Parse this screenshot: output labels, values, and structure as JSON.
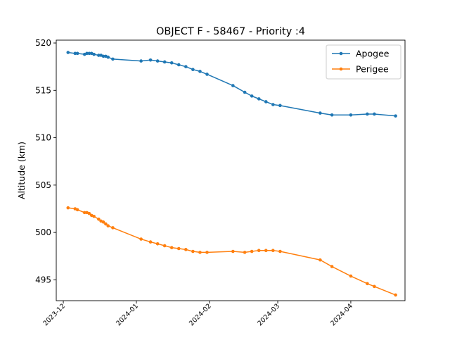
{
  "chart_data": {
    "type": "line",
    "title": "OBJECT F - 58467 - Priority :4",
    "xlabel": "",
    "ylabel": "Altitude (km)",
    "x_axis_type": "date",
    "xlim": [
      "2023-11-28",
      "2024-04-24"
    ],
    "ylim": [
      492.8,
      520.3
    ],
    "yticks": [
      495,
      500,
      505,
      510,
      515,
      520
    ],
    "xticks": [
      "2023-12-01",
      "2024-01-01",
      "2024-02-01",
      "2024-03-01",
      "2024-04-01"
    ],
    "xtick_labels": [
      "2023-12",
      "2024-01",
      "2024-02",
      "2024-03",
      "2024-04"
    ],
    "legend_position": "upper right",
    "grid": false,
    "series": [
      {
        "name": "Apogee",
        "color": "#1f77b4",
        "marker": "circle",
        "points": [
          [
            "2023-12-03",
            519.0
          ],
          [
            "2023-12-06",
            518.9
          ],
          [
            "2023-12-07",
            518.9
          ],
          [
            "2023-12-10",
            518.8
          ],
          [
            "2023-12-11",
            518.9
          ],
          [
            "2023-12-12",
            518.9
          ],
          [
            "2023-12-13",
            518.9
          ],
          [
            "2023-12-14",
            518.8
          ],
          [
            "2023-12-16",
            518.7
          ],
          [
            "2023-12-17",
            518.7
          ],
          [
            "2023-12-18",
            518.6
          ],
          [
            "2023-12-19",
            518.6
          ],
          [
            "2023-12-20",
            518.5
          ],
          [
            "2023-12-22",
            518.3
          ],
          [
            "2024-01-03",
            518.1
          ],
          [
            "2024-01-07",
            518.2
          ],
          [
            "2024-01-10",
            518.1
          ],
          [
            "2024-01-13",
            518.0
          ],
          [
            "2024-01-16",
            517.9
          ],
          [
            "2024-01-19",
            517.7
          ],
          [
            "2024-01-22",
            517.5
          ],
          [
            "2024-01-25",
            517.2
          ],
          [
            "2024-01-28",
            517.0
          ],
          [
            "2024-01-31",
            516.7
          ],
          [
            "2024-02-11",
            515.5
          ],
          [
            "2024-02-16",
            514.8
          ],
          [
            "2024-02-19",
            514.4
          ],
          [
            "2024-02-22",
            514.1
          ],
          [
            "2024-02-25",
            513.8
          ],
          [
            "2024-02-28",
            513.5
          ],
          [
            "2024-03-02",
            513.4
          ],
          [
            "2024-03-19",
            512.6
          ],
          [
            "2024-03-24",
            512.4
          ],
          [
            "2024-04-01",
            512.4
          ],
          [
            "2024-04-08",
            512.5
          ],
          [
            "2024-04-11",
            512.5
          ],
          [
            "2024-04-20",
            512.3
          ]
        ]
      },
      {
        "name": "Perigee",
        "color": "#ff7f0e",
        "marker": "circle",
        "points": [
          [
            "2023-12-03",
            502.6
          ],
          [
            "2023-12-06",
            502.5
          ],
          [
            "2023-12-07",
            502.4
          ],
          [
            "2023-12-10",
            502.1
          ],
          [
            "2023-12-11",
            502.1
          ],
          [
            "2023-12-12",
            502.0
          ],
          [
            "2023-12-13",
            501.8
          ],
          [
            "2023-12-14",
            501.7
          ],
          [
            "2023-12-16",
            501.4
          ],
          [
            "2023-12-17",
            501.2
          ],
          [
            "2023-12-18",
            501.1
          ],
          [
            "2023-12-19",
            500.9
          ],
          [
            "2023-12-20",
            500.7
          ],
          [
            "2023-12-22",
            500.5
          ],
          [
            "2024-01-03",
            499.3
          ],
          [
            "2024-01-07",
            499.0
          ],
          [
            "2024-01-10",
            498.8
          ],
          [
            "2024-01-13",
            498.6
          ],
          [
            "2024-01-16",
            498.4
          ],
          [
            "2024-01-19",
            498.3
          ],
          [
            "2024-01-22",
            498.2
          ],
          [
            "2024-01-25",
            498.0
          ],
          [
            "2024-01-28",
            497.9
          ],
          [
            "2024-01-31",
            497.9
          ],
          [
            "2024-02-11",
            498.0
          ],
          [
            "2024-02-16",
            497.9
          ],
          [
            "2024-02-19",
            498.0
          ],
          [
            "2024-02-22",
            498.1
          ],
          [
            "2024-02-25",
            498.1
          ],
          [
            "2024-02-28",
            498.1
          ],
          [
            "2024-03-02",
            498.0
          ],
          [
            "2024-03-19",
            497.1
          ],
          [
            "2024-03-24",
            496.4
          ],
          [
            "2024-04-01",
            495.4
          ],
          [
            "2024-04-08",
            494.6
          ],
          [
            "2024-04-11",
            494.3
          ],
          [
            "2024-04-20",
            493.4
          ]
        ]
      }
    ]
  }
}
